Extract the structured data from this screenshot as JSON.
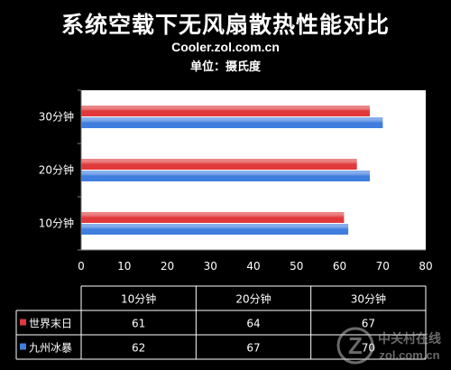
{
  "header": {
    "title": "系统空载下无风扇散热性能对比",
    "subtitle": "Cooler.zol.com.cn",
    "unit_label": "单位：摄氏度"
  },
  "watermark": {
    "text": "中关村在线",
    "domain": "zol.com.cn",
    "letter": "Z"
  },
  "colors": {
    "background": "#000000",
    "plot_area": "#ffffff",
    "series_red": "#e0393b",
    "series_blue": "#3f7ede",
    "axis_text": "#ffffff"
  },
  "chart_data": {
    "type": "bar",
    "orientation": "horizontal",
    "categories": [
      "10分钟",
      "20分钟",
      "30分钟"
    ],
    "series": [
      {
        "name": "世界末日",
        "values": [
          61,
          64,
          67
        ],
        "color": "#e0393b"
      },
      {
        "name": "九州冰暴",
        "values": [
          62,
          67,
          70
        ],
        "color": "#3f7ede"
      }
    ],
    "xlim": [
      0,
      80
    ],
    "x_ticks": [
      "0",
      "10",
      "20",
      "30",
      "40",
      "50",
      "60",
      "70",
      "80"
    ],
    "grid": false,
    "legend": "data-table",
    "data_table": {
      "headers": [
        "10分钟",
        "20分钟",
        "30分钟"
      ],
      "rows": [
        {
          "name": "世界末日",
          "values": [
            "61",
            "64",
            "67"
          ]
        },
        {
          "name": "九州冰暴",
          "values": [
            "62",
            "67",
            "70"
          ]
        }
      ]
    }
  }
}
